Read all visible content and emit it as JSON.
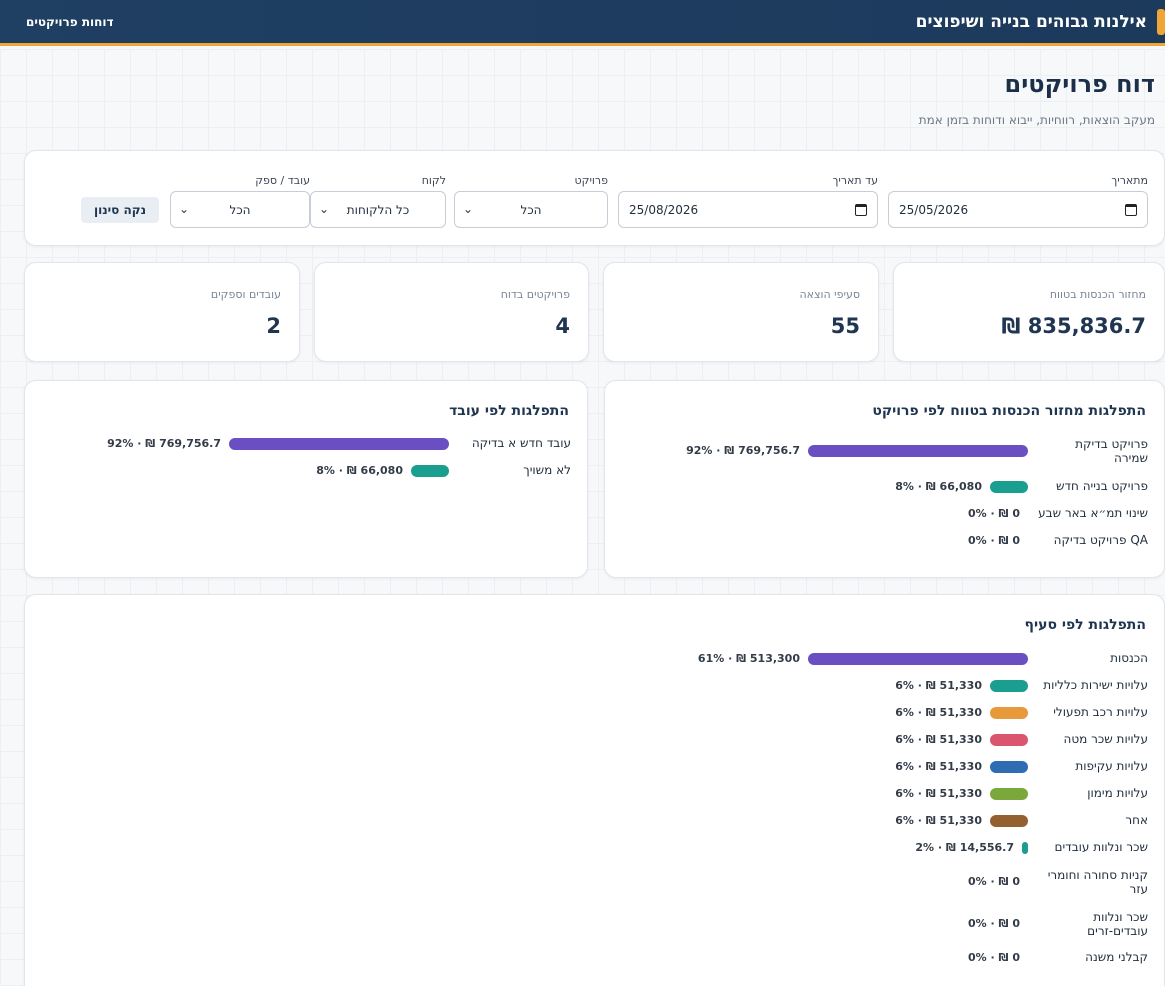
{
  "header": {
    "title": "אילנות גבוהים בנייה ושיפוצים",
    "nav_link": "דוחות פרויקטים"
  },
  "page": {
    "title": "דוח פרויקטים",
    "subtitle": "מעקב הוצאות, רווחיות, ייבוא ודוחות בזמן אמת"
  },
  "filters": {
    "from_label": "מתאריך",
    "from_value": "25/05/2026",
    "to_label": "עד תאריך",
    "to_value": "25/08/2026",
    "project_label": "פרויקט",
    "project_value": "הכל",
    "client_label": "לקוח",
    "client_value": "כל הלקוחות",
    "worker_label": "עובד / ספק",
    "worker_value": "הכל",
    "clear_button": "נקה סינון"
  },
  "stats": [
    {
      "label": "מחזור הכנסות בטווח",
      "value": "835,836.7 ₪"
    },
    {
      "label": "סעיפי הוצאה",
      "value": "55"
    },
    {
      "label": "פרויקטים בדוח",
      "value": "4"
    },
    {
      "label": "עובדים וספקים",
      "value": "2"
    }
  ],
  "by_project": {
    "title": "התפלגות מחזור הכנסות בטווח לפי פרויקט",
    "rows": [
      {
        "label": "פרויקט בדיקת שמירה",
        "value_text": "769,756.7 ₪ · 92%",
        "fraction": 1.0,
        "color": "#6a4fc3"
      },
      {
        "label": "פרויקט בנייה חדש",
        "value_text": "66,080 ₪ · 8%",
        "fraction": 0.086,
        "color": "#1a9e8f"
      },
      {
        "label": "שינוי תמ״א באר שבע",
        "value_text": "0 ₪ · 0%",
        "fraction": 0,
        "color": "#1a9e8f"
      },
      {
        "label": "QA פרויקט בדיקה",
        "value_text": "0 ₪ · 0%",
        "fraction": 0,
        "color": "#1a9e8f"
      }
    ]
  },
  "by_worker": {
    "title": "התפלגות לפי עובד",
    "rows": [
      {
        "label": "עובד חדש א בדיקה",
        "value_text": "769,756.7 ₪ · 92%",
        "fraction": 1.0,
        "color": "#6a4fc3"
      },
      {
        "label": "לא משויך",
        "value_text": "66,080 ₪ · 8%",
        "fraction": 0.086,
        "color": "#1a9e8f"
      }
    ]
  },
  "by_category": {
    "title": "התפלגות לפי סעיף",
    "rows": [
      {
        "label": "הכנסות",
        "value_text": "513,300 ₪ · 61%",
        "fraction": 1.0,
        "color": "#6a4fc3"
      },
      {
        "label": "עלויות ישירות כלליות",
        "value_text": "51,330 ₪ · 6%",
        "fraction": 0.1,
        "color": "#1a9e8f"
      },
      {
        "label": "עלויות רכב תפעולי",
        "value_text": "51,330 ₪ · 6%",
        "fraction": 0.1,
        "color": "#e89a3a"
      },
      {
        "label": "עלויות שכר מטה",
        "value_text": "51,330 ₪ · 6%",
        "fraction": 0.1,
        "color": "#d9566e"
      },
      {
        "label": "עלויות עקיפות",
        "value_text": "51,330 ₪ · 6%",
        "fraction": 0.1,
        "color": "#2f6db3"
      },
      {
        "label": "עלויות מימון",
        "value_text": "51,330 ₪ · 6%",
        "fraction": 0.1,
        "color": "#7aa83a"
      },
      {
        "label": "אחר",
        "value_text": "51,330 ₪ · 6%",
        "fraction": 0.1,
        "color": "#93602f"
      },
      {
        "label": "שכר ונלוות עובדים",
        "value_text": "14,556.7 ₪ · 2%",
        "fraction": 0.028,
        "color": "#1a9e8f"
      },
      {
        "label": "קניות סחורה וחומרי עזר",
        "value_text": "0 ₪ · 0%",
        "fraction": 0,
        "color": "#1a9e8f"
      },
      {
        "label": "שכר ונלוות עובדים-זרים",
        "value_text": "0 ₪ · 0%",
        "fraction": 0,
        "color": "#1a9e8f"
      },
      {
        "label": "קבלני משנה",
        "value_text": "0 ₪ · 0%",
        "fraction": 0,
        "color": "#1a9e8f"
      }
    ]
  }
}
